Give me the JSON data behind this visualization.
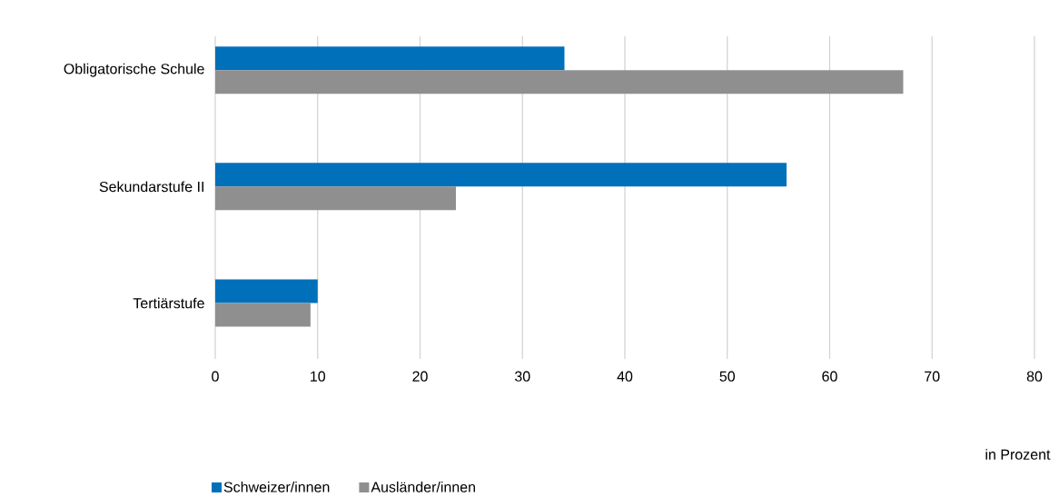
{
  "chart_data": {
    "type": "bar",
    "orientation": "horizontal",
    "categories": [
      "Obligatorische Schule",
      "Sekundarstufe II",
      "Tertiärstufe"
    ],
    "series": [
      {
        "name": "Schweizer/innen",
        "color": "#0070ba",
        "values": [
          34.1,
          55.8,
          10.0
        ]
      },
      {
        "name": "Ausländer/innen",
        "color": "#8f8f8f",
        "values": [
          67.2,
          23.5,
          9.3
        ]
      }
    ],
    "annotations": [
      "in Prozent"
    ],
    "xlim": [
      0,
      80
    ],
    "xticks": [
      0,
      10,
      20,
      30,
      40,
      50,
      60,
      70,
      80
    ],
    "grid": "x",
    "legend": "bottom"
  }
}
